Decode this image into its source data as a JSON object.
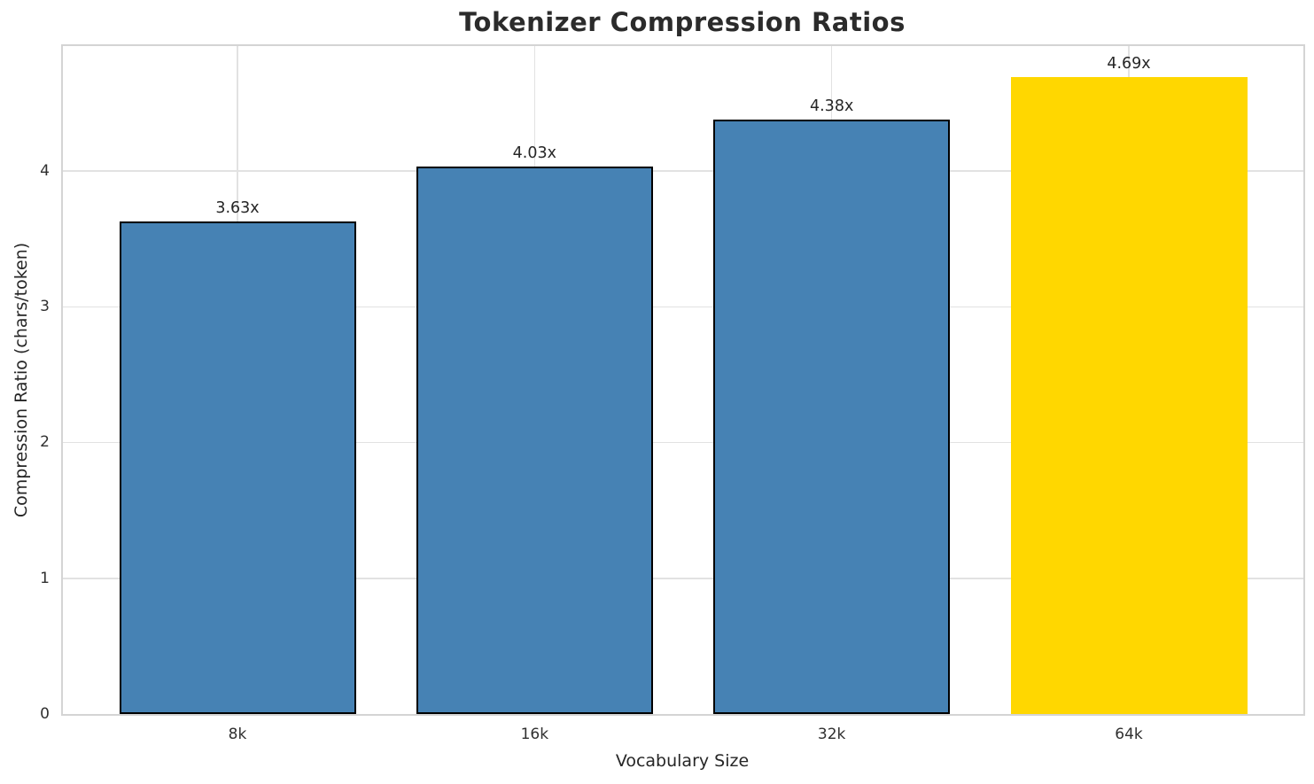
{
  "chart_data": {
    "type": "bar",
    "title": "Tokenizer Compression Ratios",
    "xlabel": "Vocabulary Size",
    "ylabel": "Compression Ratio (chars/token)",
    "categories": [
      "8k",
      "16k",
      "32k",
      "64k"
    ],
    "values": [
      3.63,
      4.03,
      4.38,
      4.69
    ],
    "bar_labels": [
      "3.63x",
      "4.03x",
      "4.38x",
      "4.69x"
    ],
    "bar_colors": [
      "#4682B4",
      "#4682B4",
      "#4682B4",
      "#FFD700"
    ],
    "bar_edge_colors": [
      "#000000",
      "#000000",
      "#000000",
      "none"
    ],
    "yticks": [
      0,
      1,
      2,
      3,
      4
    ],
    "ylim": [
      0,
      4.92
    ],
    "grid": true,
    "legend": "none",
    "colors": {
      "bar_default": "#4682B4",
      "bar_highlight": "#FFD700",
      "grid": "#e2e2e2",
      "spine": "#d4d4d4",
      "text": "#262626"
    }
  }
}
